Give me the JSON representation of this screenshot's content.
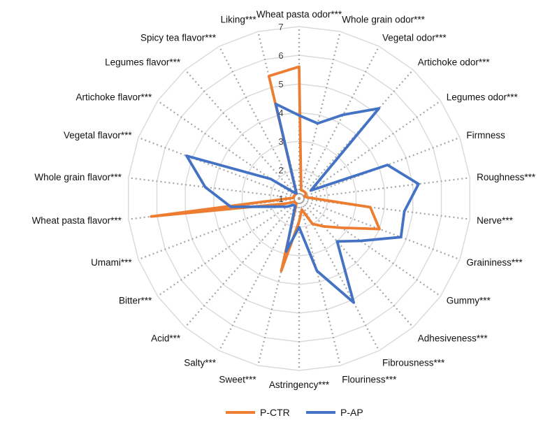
{
  "chart_data": {
    "type": "radar",
    "title": "",
    "rlim": [
      1,
      7
    ],
    "ticks": [
      1,
      2,
      3,
      4,
      5,
      6,
      7
    ],
    "grid": true,
    "legend_position": "bottom",
    "categories": [
      "Wheat pasta odor***",
      "Whole grain odor***",
      "Vegetal odor***",
      "Artichoke odor***",
      "Legumes odor***",
      "Firmness",
      "Roughness***",
      "Nerve***",
      "Graininess***",
      "Gummy***",
      "Adhesiveness***",
      "Fibrousness***",
      "Flouriness***",
      "Astringency***",
      "Sweet***",
      "Salty***",
      "Acid***",
      "Bitter***",
      "Umami***",
      "Wheat pasta flavor***",
      "Whole grain flavor***",
      "Vegetal flavor***",
      "Artichoke flavor***",
      "Legumes flavor***",
      "Spicy tea flavor***",
      "Liking***"
    ],
    "series": [
      {
        "name": "P-CTR",
        "color": "#ED7D31",
        "values": [
          5.6,
          1.3,
          1.3,
          1.3,
          1.3,
          1.2,
          1.3,
          3.5,
          4.0,
          2.8,
          2.3,
          2.0,
          1.4,
          1.8,
          3.6,
          1.2,
          1.2,
          1.2,
          1.5,
          6.2,
          1.2,
          1.2,
          1.2,
          1.2,
          1.2,
          5.4
        ]
      },
      {
        "name": "P-AP",
        "color": "#4472C4",
        "values": [
          3.9,
          3.7,
          4.3,
          5.2,
          1.5,
          4.3,
          5.2,
          4.7,
          4.8,
          3.6,
          3.0,
          5.1,
          3.6,
          2.0,
          2.9,
          1.3,
          1.3,
          1.5,
          1.8,
          3.4,
          4.3,
          5.2,
          2.2,
          1.3,
          1.2,
          4.4
        ]
      }
    ]
  }
}
